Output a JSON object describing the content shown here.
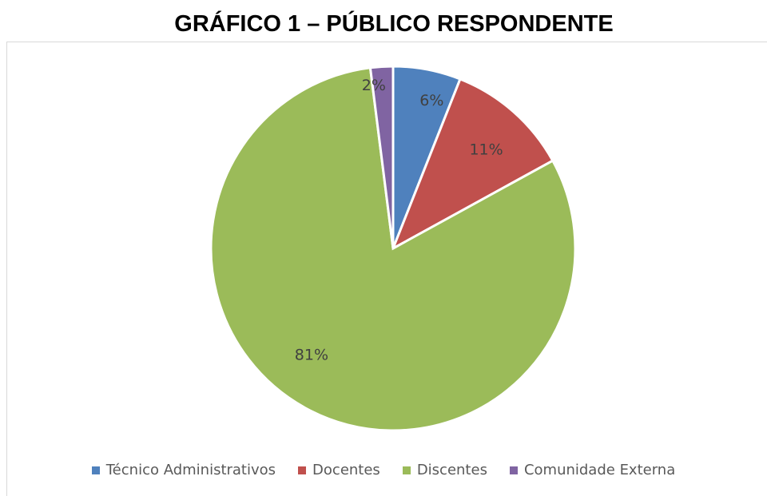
{
  "chart_data": {
    "type": "pie",
    "title": "GRÁFICO 1 – PÚBLICO RESPONDENTE",
    "categories": [
      "Técnico Administrativos",
      "Docentes",
      "Discentes",
      "Comunidade Externa"
    ],
    "values": [
      6,
      11,
      81,
      2
    ],
    "labels": [
      "6%",
      "11%",
      "81%",
      "2%"
    ],
    "colors": [
      "#4f81bd",
      "#c0504d",
      "#9bbb59",
      "#8064a2"
    ],
    "legend_position": "bottom"
  }
}
